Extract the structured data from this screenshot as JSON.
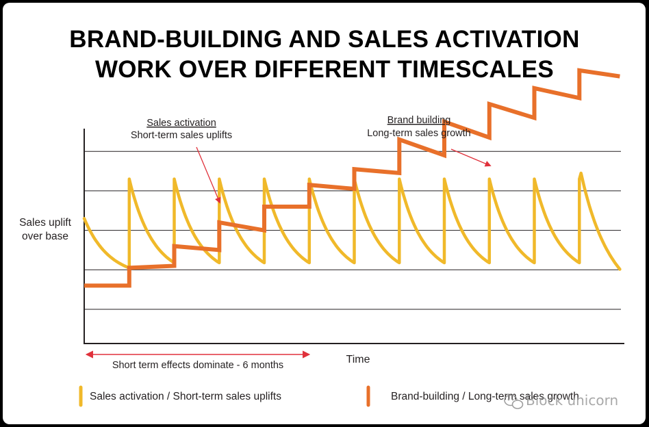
{
  "chart_data": {
    "type": "line",
    "title": [
      "BRAND-BUILDING AND SALES ACTIVATION",
      "WORK OVER DIFFERENT TIMESCALES"
    ],
    "ylabel": [
      "Sales uplift",
      "over base"
    ],
    "xlabel": "Time",
    "grid": true,
    "xlim": [
      0,
      24
    ],
    "ylim": [
      0,
      5.5
    ],
    "annotations": {
      "sales_activation": {
        "title": "Sales activation",
        "subtitle": "Short-term sales uplifts"
      },
      "brand_building": {
        "title": "Brand building",
        "subtitle": "Long-term sales growth"
      },
      "short_term_range": {
        "label": "Short term effects dominate - 6 months",
        "from": 0,
        "to": 9.3
      }
    },
    "series": [
      {
        "name": "Sales activation / Short-term sales uplifts",
        "color": "#f0b92a",
        "baseline": 0.8,
        "peak": 3.3,
        "start_value": 2.3,
        "spike_times": [
          2,
          4,
          6,
          8,
          10,
          12,
          14,
          16,
          18,
          20,
          22
        ],
        "end": {
          "x": 23.8,
          "y": 0.45
        }
      },
      {
        "name": "Brand-building / Long-term sales growth",
        "color": "#e8702a",
        "steps": [
          {
            "x0": 0,
            "y0": 0.6,
            "x1": 2,
            "y1": 0.6
          },
          {
            "x0": 2,
            "y0": 1.05,
            "x1": 4,
            "y1": 1.1
          },
          {
            "x0": 4,
            "y0": 1.6,
            "x1": 6,
            "y1": 1.5
          },
          {
            "x0": 6,
            "y0": 2.2,
            "x1": 8,
            "y1": 2.0
          },
          {
            "x0": 8,
            "y0": 2.6,
            "x1": 10,
            "y1": 2.6
          },
          {
            "x0": 10,
            "y0": 3.15,
            "x1": 12,
            "y1": 3.05
          },
          {
            "x0": 12,
            "y0": 3.55,
            "x1": 14,
            "y1": 3.45
          },
          {
            "x0": 14,
            "y0": 4.3,
            "x1": 16,
            "y1": 3.9
          },
          {
            "x0": 16,
            "y0": 4.75,
            "x1": 18,
            "y1": 4.35
          },
          {
            "x0": 18,
            "y0": 5.2,
            "x1": 20,
            "y1": 4.85
          },
          {
            "x0": 20,
            "y0": 5.6,
            "x1": 22,
            "y1": 5.35
          },
          {
            "x0": 22,
            "y0": 6.05,
            "x1": 23.8,
            "y1": 5.9
          }
        ]
      }
    ]
  },
  "watermark": "Block unicorn",
  "colors": {
    "frame": "#000000",
    "grid": "#231f20",
    "annotation_arrow": "#e0313b",
    "range_arrow": "#e0313b"
  }
}
